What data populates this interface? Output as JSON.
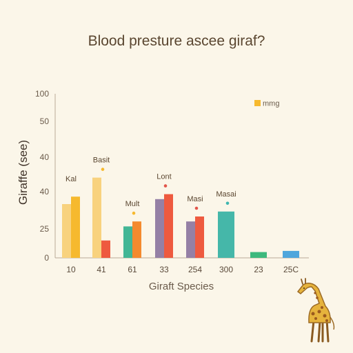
{
  "chart_data": {
    "type": "bar",
    "title": "Blood presture ascee giraf?",
    "xlabel": "Giraft Species",
    "ylabel": "Giraffe (see)",
    "legend": {
      "label": "mmg",
      "color": "#f6b92e",
      "placement": "top-right"
    },
    "y_ticks": [
      "0",
      "25",
      "40",
      "40",
      "50",
      "100"
    ],
    "x_ticks": [
      "10",
      "41",
      "61",
      "33",
      "254",
      "300",
      "23",
      "25C"
    ],
    "groups": [
      {
        "tick": "10",
        "label": "Kal",
        "label_color": "#5a4630",
        "dot_color": "",
        "bars": [
          {
            "value": 35,
            "color": "#f8d27e"
          },
          {
            "value": 38,
            "color": "#f6b92e"
          }
        ]
      },
      {
        "tick": "41",
        "label": "Basit",
        "label_color": "#5a4630",
        "dot_color": "#f6b92e",
        "bars": [
          {
            "value": 42,
            "color": "#f8d27e"
          },
          {
            "value": 15,
            "color": "#ee5a3f"
          }
        ]
      },
      {
        "tick": "61",
        "label": "Mult",
        "label_color": "#5a4630",
        "dot_color": "#f6b92e",
        "bars": [
          {
            "value": 26,
            "color": "#42b695"
          },
          {
            "value": 28,
            "color": "#f48a2e"
          }
        ]
      },
      {
        "tick": "33",
        "label": "Lont",
        "label_color": "#5a4630",
        "dot_color": "#e2554a",
        "bars": [
          {
            "value": 37,
            "color": "#9580a5"
          },
          {
            "value": 39,
            "color": "#ee5a3f"
          }
        ]
      },
      {
        "tick": "254",
        "label": "Masi",
        "label_color": "#5a4630",
        "dot_color": "#e2554a",
        "bars": [
          {
            "value": 28,
            "color": "#9580a5"
          },
          {
            "value": 30,
            "color": "#ee5a3f"
          }
        ]
      },
      {
        "tick": "300",
        "label": "Masai",
        "label_color": "#5a4630",
        "dot_color": "#3fb6b0",
        "bars": [
          {
            "value": 32,
            "color": "#45b7a9"
          }
        ]
      },
      {
        "tick": "23",
        "label": "",
        "label_color": "#5a4630",
        "dot_color": "",
        "bars": [
          {
            "value": 5,
            "color": "#3db97d"
          }
        ]
      },
      {
        "tick": "25C",
        "label": "",
        "label_color": "#5a4630",
        "dot_color": "",
        "bars": [
          {
            "value": 6,
            "color": "#4ea6dc"
          }
        ]
      }
    ],
    "grid": false
  }
}
